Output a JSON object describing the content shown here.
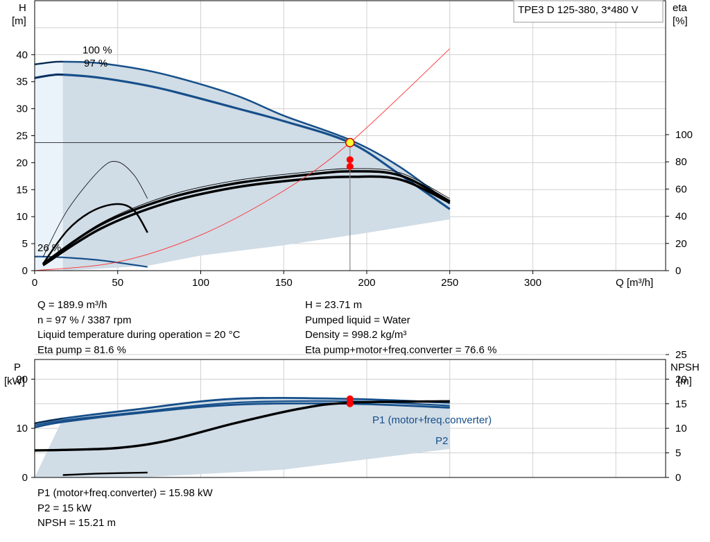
{
  "chart_data": [
    {
      "type": "line",
      "title": "TPE3 D 125-380, 3*480 V",
      "xlabel": "Q [m³/h]",
      "ylabel_left": [
        "H",
        "[m]"
      ],
      "ylabel_right": [
        "eta",
        "[%]"
      ],
      "xlim": [
        0,
        380
      ],
      "ylim_left": [
        0,
        50
      ],
      "ylim_right": [
        0,
        100
      ],
      "x_ticks": [
        0,
        50,
        100,
        150,
        200,
        250,
        300
      ],
      "y_ticks_left": [
        0,
        5,
        10,
        15,
        20,
        25,
        30,
        35,
        40
      ],
      "y_ticks_right": [
        0,
        20,
        40,
        60,
        80,
        100
      ],
      "grid": true,
      "annotations": [
        "100 %",
        "97 %",
        "26 %"
      ],
      "series": [
        {
          "name": "100 %",
          "kind": "head",
          "x": [
            0,
            10,
            17,
            40,
            75,
            120,
            150,
            190,
            220,
            250
          ],
          "y": [
            38.2,
            38.6,
            38.7,
            38.4,
            36.6,
            32.6,
            28.7,
            24.2,
            19.2,
            12.4
          ]
        },
        {
          "name": "97 %",
          "kind": "head",
          "x": [
            0,
            10,
            17,
            40,
            75,
            120,
            150,
            189.9,
            220,
            250
          ],
          "y": [
            35.7,
            36.2,
            36.3,
            35.7,
            33.8,
            30.2,
            27.7,
            23.71,
            17.8,
            11.4
          ]
        },
        {
          "name": "26 %",
          "kind": "head",
          "x": [
            0,
            5,
            20,
            40,
            68
          ],
          "y": [
            2.6,
            2.6,
            2.4,
            1.9,
            0.7
          ]
        },
        {
          "kind": "eta-100",
          "x": [
            5,
            40,
            80,
            120,
            160,
            190,
            220,
            250
          ],
          "y": [
            5,
            35,
            55,
            66,
            72,
            75,
            72,
            53
          ]
        },
        {
          "kind": "eta-97",
          "x": [
            5,
            40,
            80,
            120,
            160,
            190,
            220,
            250
          ],
          "y": [
            5,
            34,
            53,
            64,
            70,
            73,
            70,
            51
          ]
        },
        {
          "kind": "eta-total",
          "x": [
            5,
            40,
            80,
            120,
            160,
            190,
            220,
            250
          ],
          "y": [
            4,
            31,
            50,
            61,
            67,
            69,
            67,
            50
          ]
        },
        {
          "kind": "eta-26",
          "x": [
            5,
            20,
            35,
            50,
            60,
            68
          ],
          "y": [
            5,
            30,
            44,
            49,
            44,
            28
          ]
        },
        {
          "kind": "eta-26-thin",
          "x": [
            5,
            20,
            40,
            50,
            60,
            68
          ],
          "y": [
            10,
            45,
            75,
            80,
            70,
            53
          ]
        },
        {
          "kind": "system",
          "x": [
            0,
            50,
            100,
            150,
            189.9,
            250
          ],
          "y": [
            0,
            1.6,
            6.6,
            14.8,
            23.71,
            41.1
          ]
        }
      ],
      "operating_point": {
        "Q": 189.9,
        "H": 23.71,
        "eta_pump": 81.6,
        "eta_total": 76.6
      }
    },
    {
      "type": "line",
      "ylabel_left": [
        "P",
        "[kW]"
      ],
      "ylabel_right": [
        "NPSH",
        "[m]"
      ],
      "xlim": [
        0,
        380
      ],
      "ylim_left": [
        0,
        30
      ],
      "ylim_right": [
        0,
        30
      ],
      "y_ticks_left": [
        0,
        10,
        20
      ],
      "y_ticks_right": [
        0,
        5,
        10,
        15,
        20,
        25
      ],
      "grid": true,
      "series": [
        {
          "name": "P1 (motor+freq.converter)",
          "x": [
            0,
            17,
            60,
            120,
            190,
            250
          ],
          "y": [
            11,
            12,
            13.8,
            16,
            15.98,
            15.2
          ]
        },
        {
          "name": "P2",
          "x": [
            0,
            17,
            60,
            120,
            190,
            250
          ],
          "y": [
            10.2,
            11.3,
            13,
            14.8,
            15.0,
            14.2
          ]
        },
        {
          "kind": "P1-97",
          "x": [
            0,
            17,
            60,
            120,
            190,
            250
          ],
          "y": [
            10.6,
            11.6,
            13.2,
            15.2,
            15.5,
            14.6
          ]
        },
        {
          "kind": "npsh",
          "x": [
            0,
            17,
            50,
            80,
            120,
            160,
            189.9,
            250
          ],
          "y": [
            5.5,
            5.6,
            6,
            7.5,
            11,
            14,
            15.21,
            15.5
          ]
        },
        {
          "kind": "p-26",
          "x": [
            17,
            40,
            68
          ],
          "y": [
            0.5,
            0.8,
            1
          ]
        }
      ],
      "operating_point": {
        "Q": 189.9,
        "P1": 15.98,
        "P2": 15,
        "NPSH": 15.21
      }
    }
  ],
  "readout_top": {
    "left": [
      "Q = 189.9 m³/h",
      "n = 97 % / 3387 rpm",
      "Liquid temperature during operation = 20 °C",
      "Eta pump = 81.6 %"
    ],
    "right": [
      "H = 23.71 m",
      "Pumped liquid = Water",
      "Density = 998.2 kg/m³",
      "Eta pump+motor+freq.converter = 76.6 %"
    ]
  },
  "readout_bottom": [
    "P1 (motor+freq.converter) = 15.98 kW",
    "P2 = 15 kW",
    "NPSH = 15.21 m"
  ],
  "colors": {
    "curve_blue": "#164f8a",
    "envelope": "#d0dce6",
    "light_area": "#eaf2fa",
    "system_red": "#ff3030",
    "point_red": "#ff0000",
    "point_yellow": "#ffff33",
    "grid": "#d0d0d0"
  }
}
